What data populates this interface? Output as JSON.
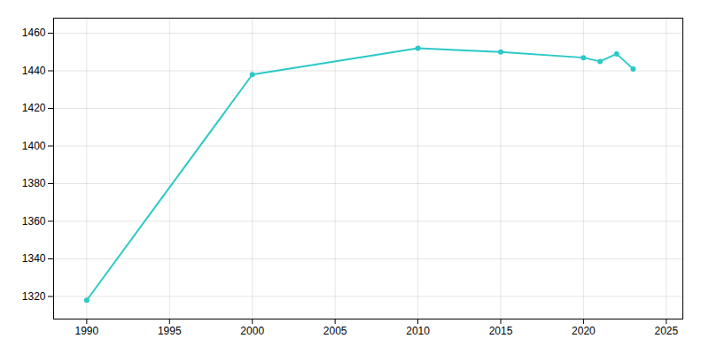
{
  "chart_data": {
    "type": "line",
    "x": [
      1990,
      2000,
      2010,
      2015,
      2020,
      2021,
      2022,
      2023
    ],
    "values": [
      1318,
      1438,
      1452,
      1450,
      1447,
      1445,
      1449,
      1441
    ],
    "color": "#2cc8c8",
    "marker": "circle",
    "xlim": [
      1988,
      2026
    ],
    "ylim": [
      1308,
      1468
    ],
    "xticks": [
      1990,
      1995,
      2000,
      2005,
      2010,
      2015,
      2020,
      2025
    ],
    "yticks": [
      1320,
      1340,
      1360,
      1380,
      1400,
      1420,
      1440,
      1460
    ],
    "grid": true
  }
}
